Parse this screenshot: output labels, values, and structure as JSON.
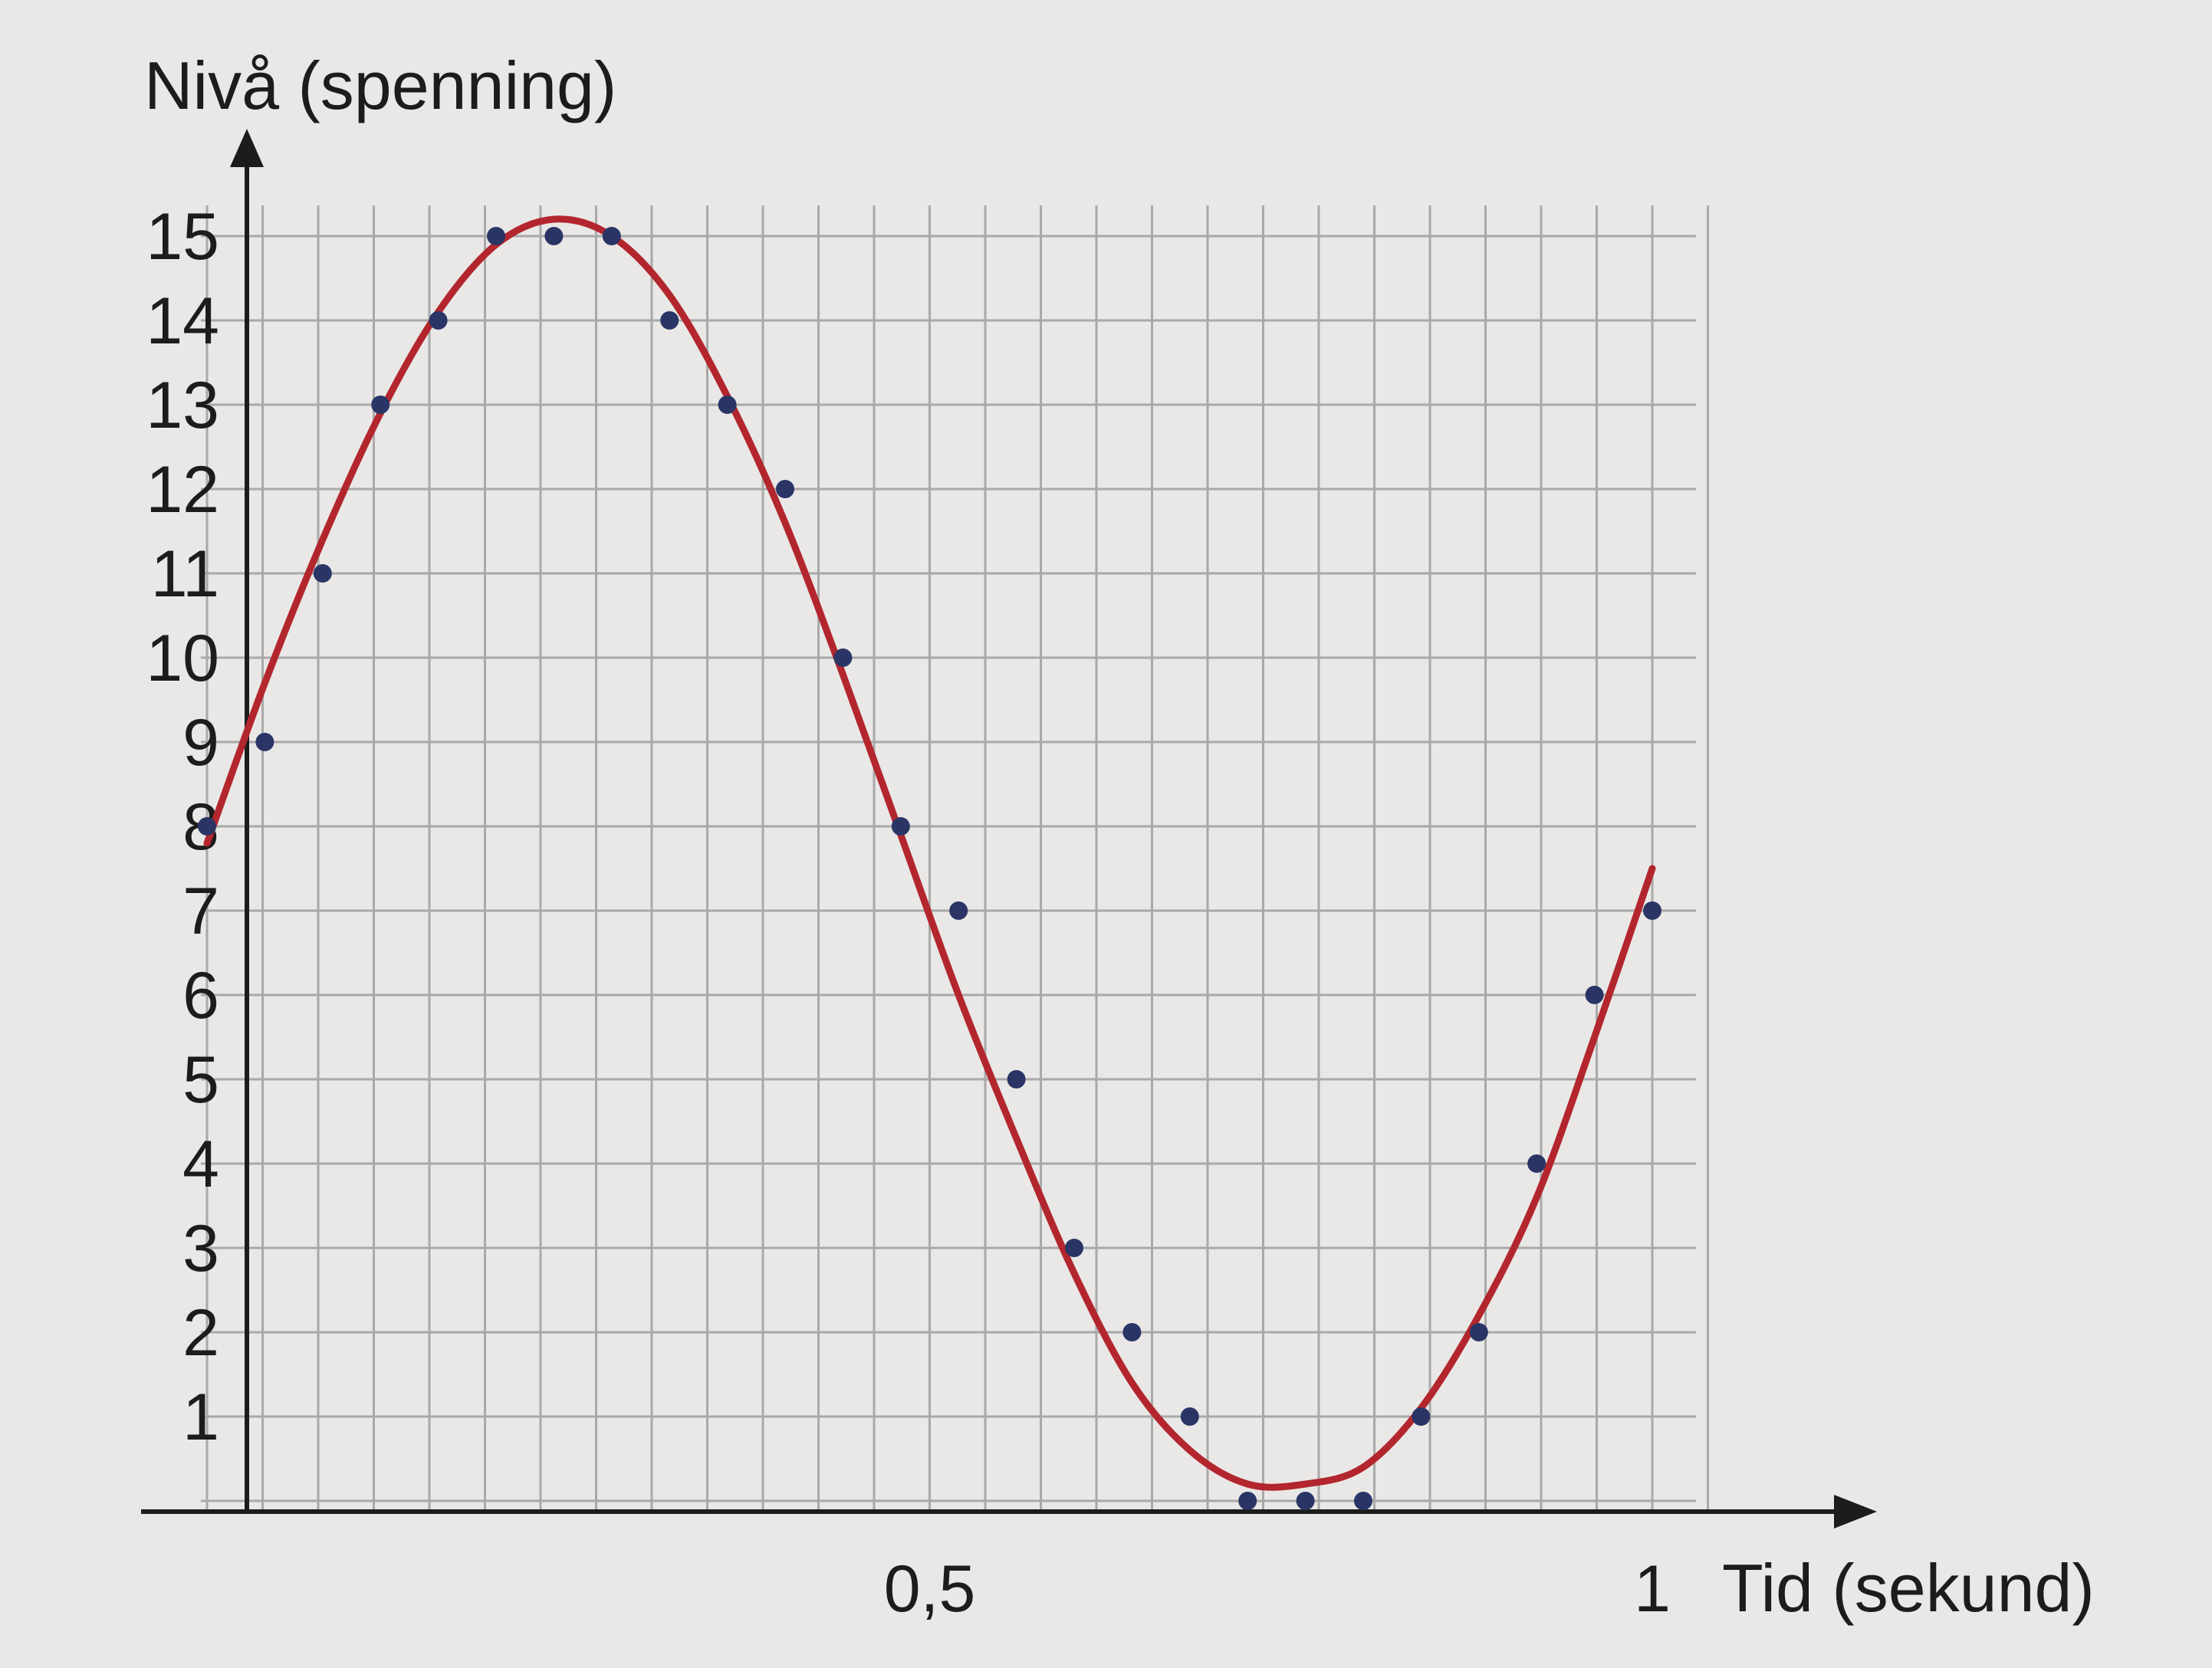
{
  "chart_data": {
    "type": "line",
    "title": "",
    "ylabel": "Nivå (spenning)",
    "xlabel": "Tid (sekund)",
    "xlim": [
      0,
      1
    ],
    "ylim": [
      0,
      15
    ],
    "grid": true,
    "x_ticks": [
      {
        "value": 0.5,
        "label": "0,5"
      },
      {
        "value": 1,
        "label": "1"
      }
    ],
    "y_ticks": [
      {
        "value": 1,
        "label": "1"
      },
      {
        "value": 2,
        "label": "2"
      },
      {
        "value": 3,
        "label": "3"
      },
      {
        "value": 4,
        "label": "4"
      },
      {
        "value": 5,
        "label": "5"
      },
      {
        "value": 6,
        "label": "6"
      },
      {
        "value": 7,
        "label": "7"
      },
      {
        "value": 8,
        "label": "8"
      },
      {
        "value": 9,
        "label": "9"
      },
      {
        "value": 10,
        "label": "10"
      },
      {
        "value": 11,
        "label": "11"
      },
      {
        "value": 12,
        "label": "12"
      },
      {
        "value": 13,
        "label": "13"
      },
      {
        "value": 14,
        "label": "14"
      },
      {
        "value": 15,
        "label": "15"
      }
    ],
    "series": [
      {
        "kind": "scatter",
        "color": "#2a3566",
        "points": [
          [
            0.0,
            8.0
          ],
          [
            0.04,
            9.0
          ],
          [
            0.08,
            11.0
          ],
          [
            0.12,
            13.0
          ],
          [
            0.16,
            14.0
          ],
          [
            0.2,
            15.0
          ],
          [
            0.24,
            15.0
          ],
          [
            0.28,
            15.0
          ],
          [
            0.32,
            14.0
          ],
          [
            0.36,
            13.0
          ],
          [
            0.4,
            12.0
          ],
          [
            0.44,
            10.0
          ],
          [
            0.48,
            8.0
          ],
          [
            0.52,
            7.0
          ],
          [
            0.56,
            5.0
          ],
          [
            0.6,
            3.0
          ],
          [
            0.64,
            2.0
          ],
          [
            0.68,
            1.0
          ],
          [
            0.72,
            0.0
          ],
          [
            0.76,
            0.0
          ],
          [
            0.8,
            0.0
          ],
          [
            0.84,
            1.0
          ],
          [
            0.88,
            2.0
          ],
          [
            0.92,
            4.0
          ],
          [
            0.96,
            6.0
          ],
          [
            1.0,
            7.0
          ]
        ]
      },
      {
        "kind": "line",
        "color": "#b3262e",
        "x": [
          0.0,
          0.04,
          0.08,
          0.12,
          0.16,
          0.2,
          0.24,
          0.28,
          0.32,
          0.36,
          0.4,
          0.44,
          0.48,
          0.52,
          0.56,
          0.6,
          0.64,
          0.68,
          0.72,
          0.76,
          0.8,
          0.84,
          0.88,
          0.92,
          0.96,
          1.0
        ],
        "y": [
          7.8,
          9.7,
          11.4,
          12.9,
          14.1,
          14.9,
          15.2,
          15.0,
          14.3,
          13.1,
          11.6,
          9.8,
          7.9,
          6.0,
          4.3,
          2.7,
          1.4,
          0.6,
          0.2,
          0.2,
          0.4,
          1.1,
          2.2,
          3.6,
          5.5,
          7.5
        ]
      }
    ]
  }
}
